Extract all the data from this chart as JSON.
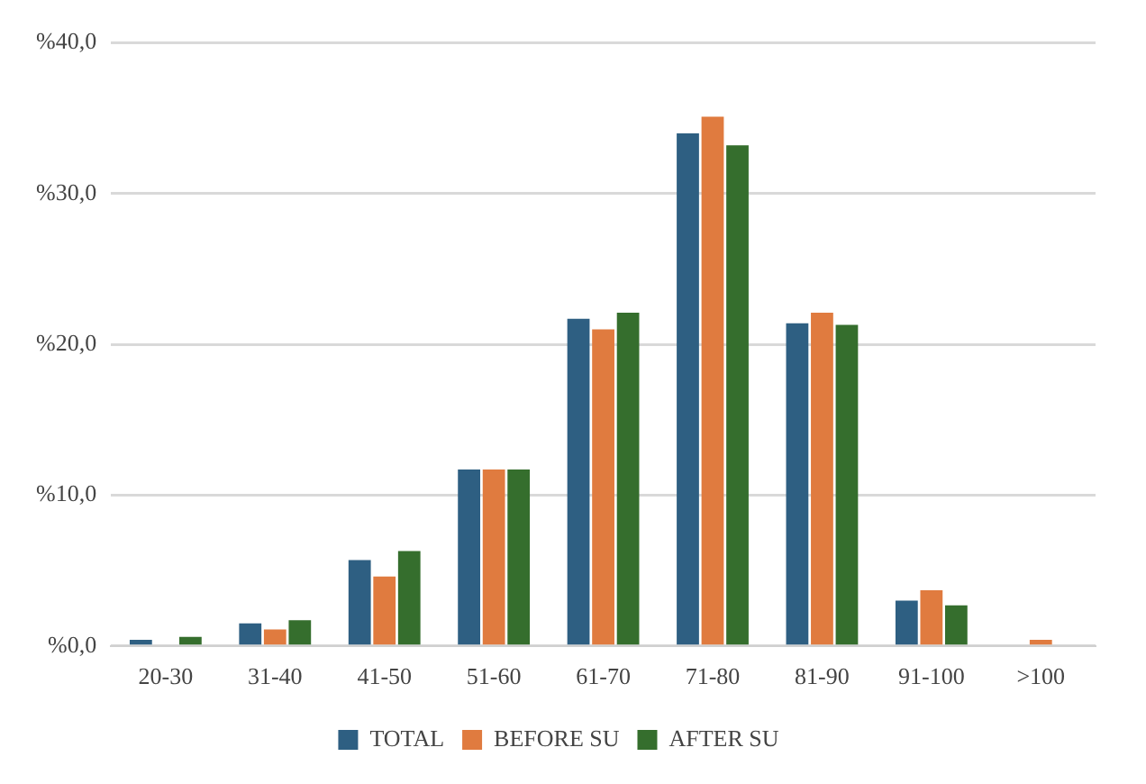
{
  "chart_data": {
    "type": "bar",
    "categories": [
      "20-30",
      "31-40",
      "41-50",
      "51-60",
      "61-70",
      "71-80",
      "81-90",
      "91-100",
      ">100"
    ],
    "series": [
      {
        "name": "TOTAL",
        "color": "#2e5f82",
        "values": [
          0.4,
          1.5,
          5.7,
          11.7,
          21.7,
          34.0,
          21.4,
          3.0,
          0
        ]
      },
      {
        "name": "BEFORE SU",
        "color": "#e07b3f",
        "values": [
          0,
          1.1,
          4.6,
          11.7,
          21.0,
          35.1,
          22.1,
          3.7,
          0.4
        ]
      },
      {
        "name": "AFTER SU",
        "color": "#356e2d",
        "values": [
          0.6,
          1.7,
          6.3,
          11.7,
          22.1,
          33.2,
          21.3,
          2.7,
          0
        ]
      }
    ],
    "ylim": [
      0,
      40
    ],
    "yticks": [
      {
        "value": 0,
        "label": "%0,0"
      },
      {
        "value": 10,
        "label": "%10,0"
      },
      {
        "value": 20,
        "label": "%20,0"
      },
      {
        "value": 30,
        "label": "%30,0"
      },
      {
        "value": 40,
        "label": "%40,0"
      }
    ],
    "grid": "y",
    "legend": "bottom"
  }
}
